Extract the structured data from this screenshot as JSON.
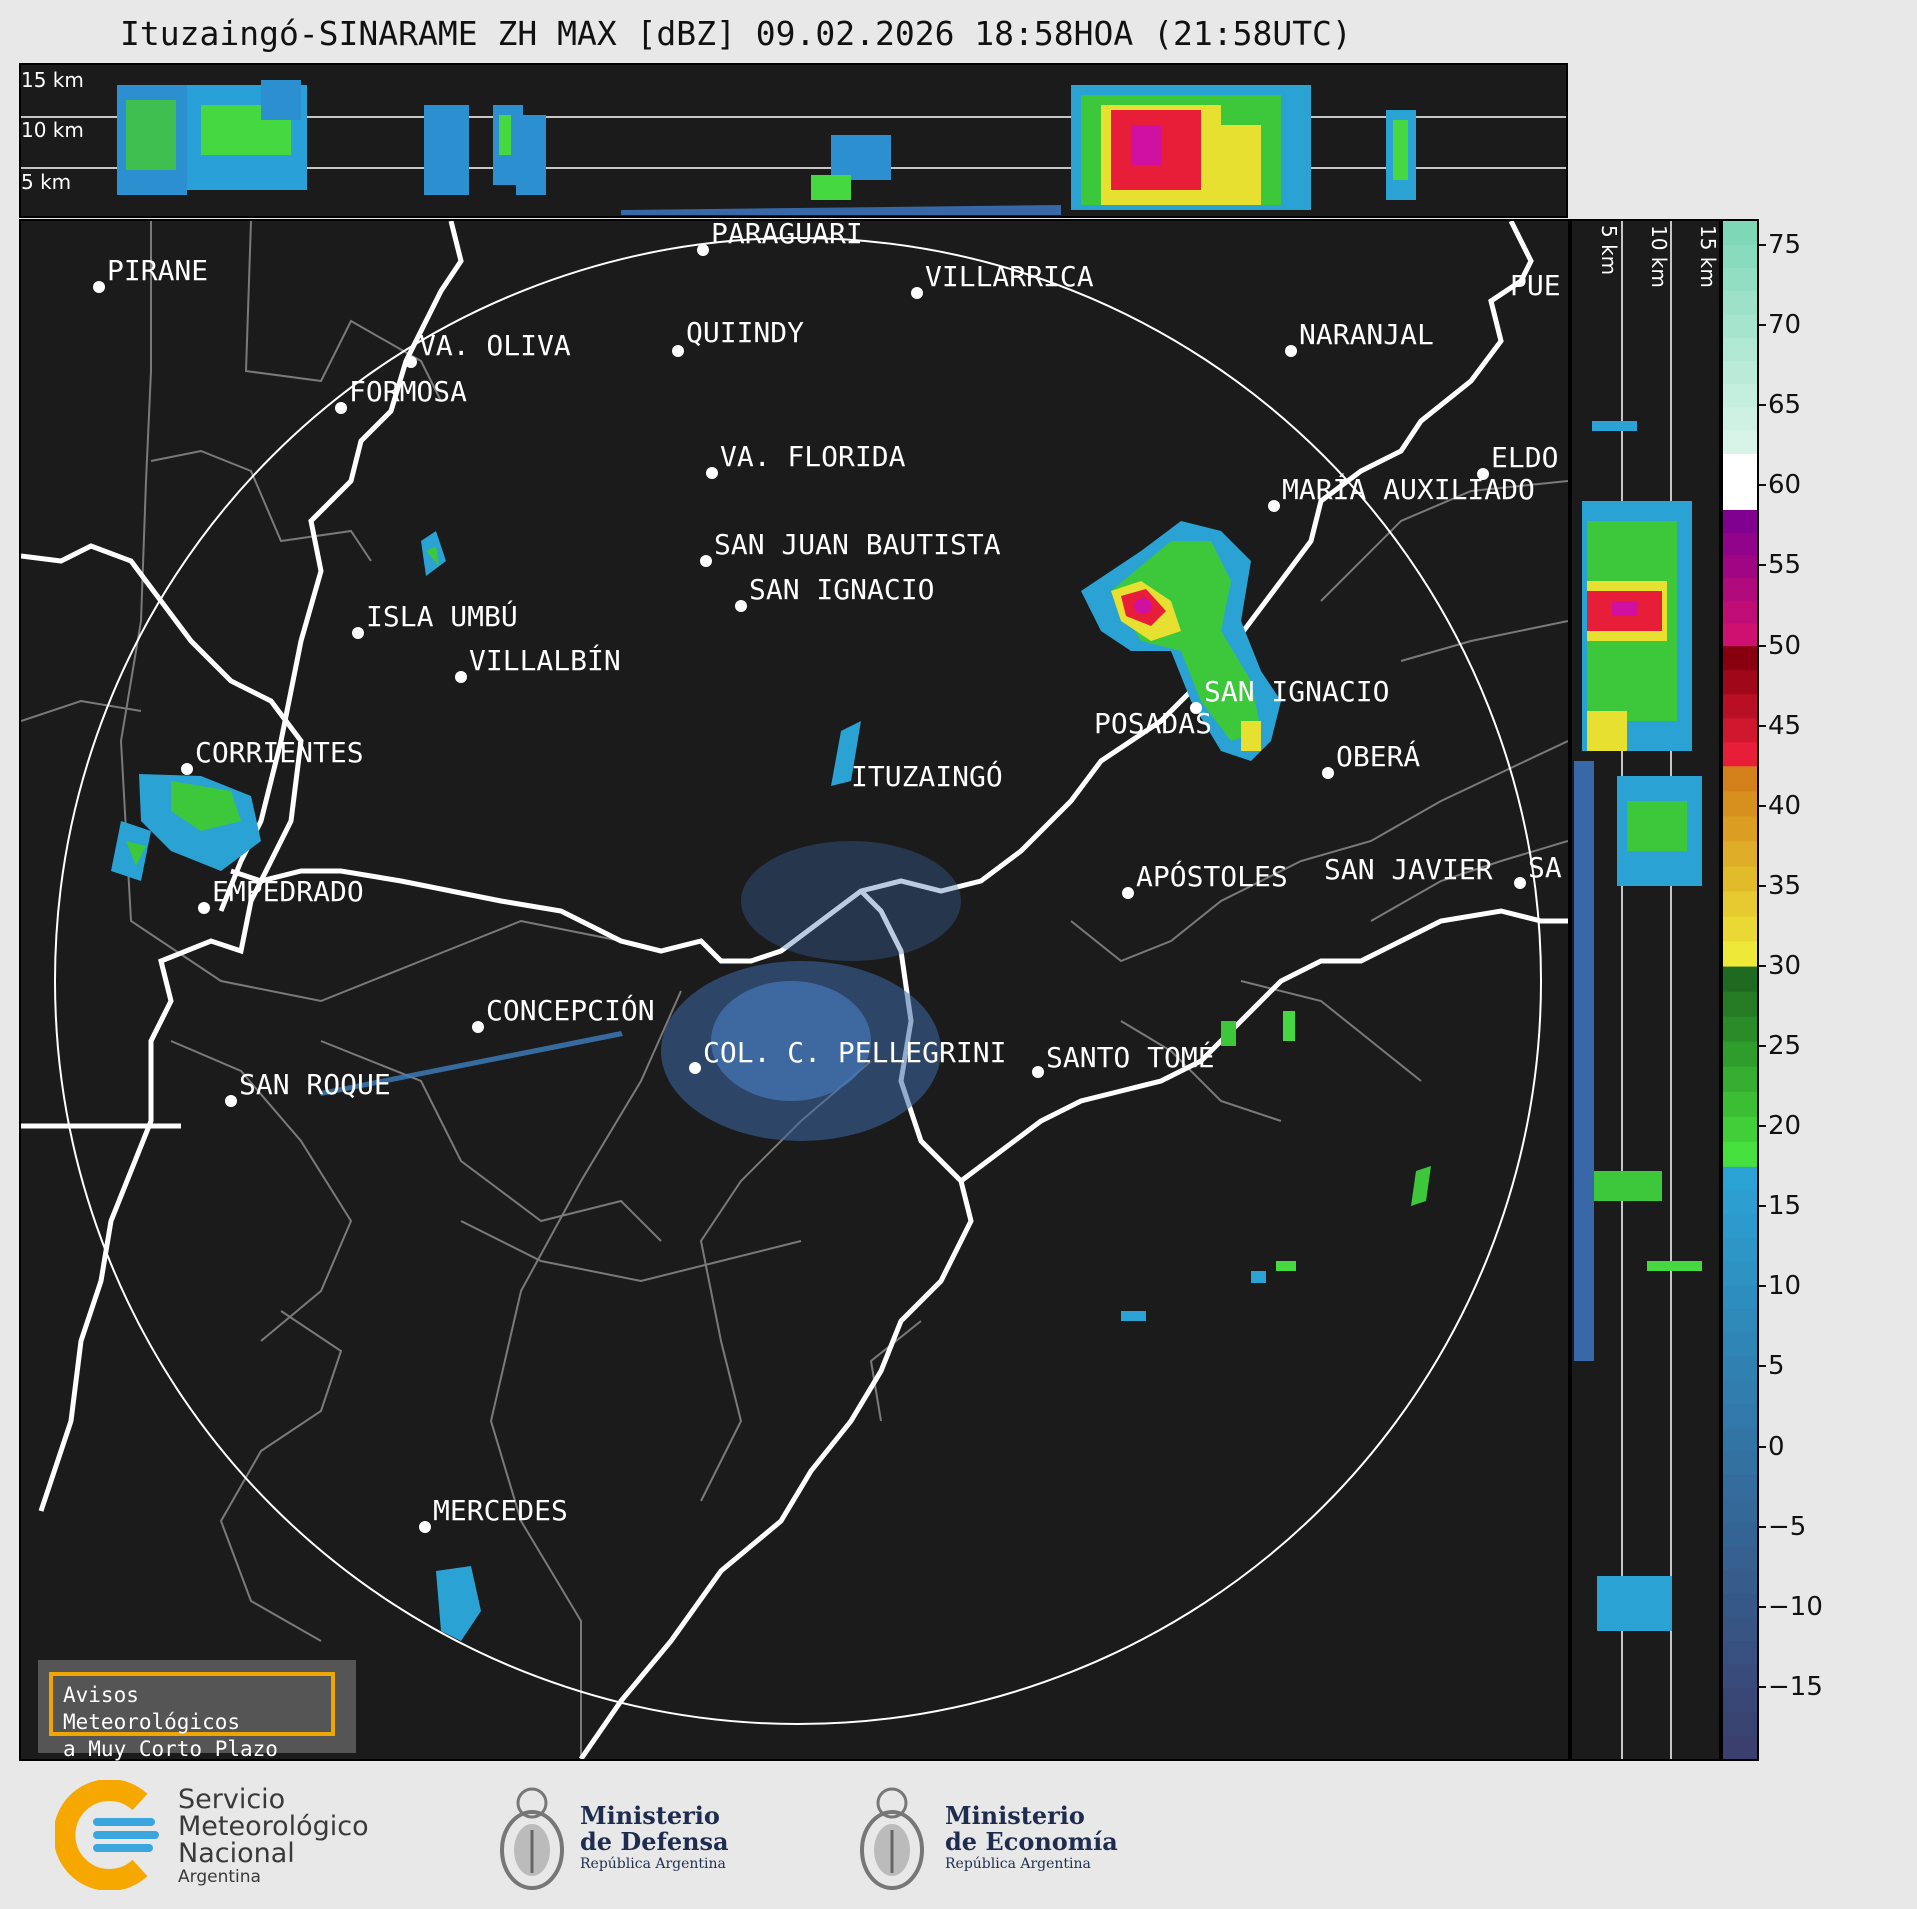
{
  "title": "Ituzaingó-SINARAME ZH MAX [dBZ] 09.02.2026 18:58HOA (21:58UTC)",
  "height_labels": {
    "h15": "15 km",
    "h10": "10 km",
    "h5": "5 km"
  },
  "cities": [
    {
      "name": "PIRANE"
    },
    {
      "name": "PARAGUARÍ"
    },
    {
      "name": "VILLARRICA"
    },
    {
      "name": "QUIINDY"
    },
    {
      "name": "VA. OLIVA"
    },
    {
      "name": "NARANJAL"
    },
    {
      "name": "FORMOSA"
    },
    {
      "name": "VA. FLORIDA"
    },
    {
      "name": "ELDORADO",
      "visible": "ELDO"
    },
    {
      "name": "MARÍA AUXILIADORA",
      "visible": "MARÍA AUXILIADO"
    },
    {
      "name": "SAN JUAN BAUTISTA"
    },
    {
      "name": "SAN IGNACIO"
    },
    {
      "name": "ISLA UMBÚ"
    },
    {
      "name": "VILLALBÍN"
    },
    {
      "name": "SAN IGNACIO"
    },
    {
      "name": "POSADAS"
    },
    {
      "name": "CORRIENTES"
    },
    {
      "name": "ITUZAINGÓ"
    },
    {
      "name": "OBERÁ"
    },
    {
      "name": "APÓSTOLES"
    },
    {
      "name": "SAN JAVIER"
    },
    {
      "name": "SAN",
      "visible": "SA"
    },
    {
      "name": "EMPEDRADO"
    },
    {
      "name": "CONCEPCIÓN"
    },
    {
      "name": "COL. C. PELLEGRINI"
    },
    {
      "name": "SANTO TOMÉ"
    },
    {
      "name": "SAN ROQUE"
    },
    {
      "name": "MERCEDES"
    },
    {
      "name": "PUERTO",
      "visible": "PUE"
    }
  ],
  "colorbar": {
    "unit": "dBZ",
    "min": -19.5,
    "max": 76.5,
    "ticks": [
      "75",
      "70",
      "65",
      "60",
      "55",
      "50",
      "45",
      "40",
      "35",
      "30",
      "25",
      "20",
      "15",
      "10",
      "5",
      "0",
      "−5",
      "−10",
      "−15"
    ],
    "colors": [
      {
        "from": -19.5,
        "to": 17.5,
        "start": "#3a3f6e",
        "end": "#2ba2d4"
      },
      {
        "from": 17.5,
        "to": 30,
        "start": "#46e03c",
        "end": "#1e6a20"
      },
      {
        "from": 30,
        "to": 42.5,
        "start": "#eee838",
        "end": "#d3801a"
      },
      {
        "from": 42.5,
        "to": 50,
        "start": "#e81e38",
        "end": "#880010"
      },
      {
        "from": 50,
        "to": 58.5,
        "start": "#d01070",
        "end": "#800090"
      },
      {
        "from": 58.5,
        "to": 62,
        "start": "#ffffff",
        "end": "#ffffff"
      },
      {
        "from": 62,
        "to": 76.5,
        "start": "#d8f4e8",
        "end": "#7ed8b8"
      }
    ]
  },
  "warning_box": {
    "line1": "Avisos Meteorológicos",
    "line2": "a Muy Corto Plazo"
  },
  "logos": {
    "smn": {
      "line1": "Servicio",
      "line2": "Meteorológico",
      "line3": "Nacional",
      "line4": "Argentina",
      "colors": [
        "#f7a800",
        "#3aa6dd"
      ]
    },
    "defensa": {
      "line1": "Ministerio",
      "line2": "de Defensa",
      "line3": "República Argentina"
    },
    "economia": {
      "line1": "Ministerio",
      "line2": "de Economía",
      "line3": "República Argentina"
    }
  }
}
